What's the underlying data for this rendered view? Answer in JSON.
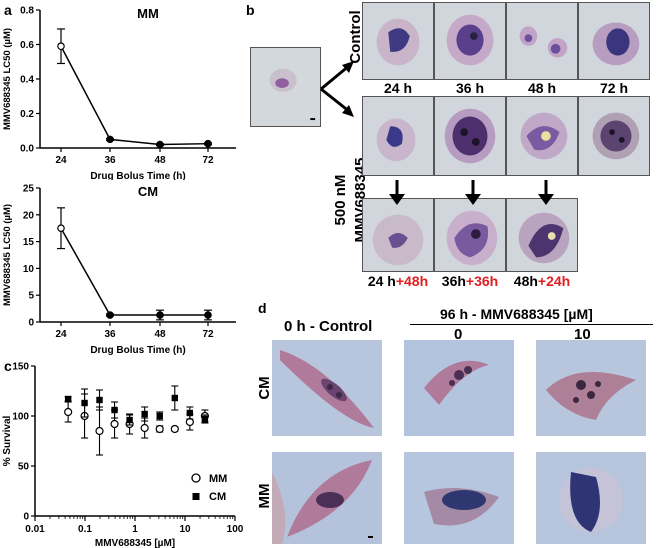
{
  "panel_a_label": "a",
  "panel_b_label": "b",
  "panel_c_label": "c",
  "panel_d_label": "d",
  "chart_data": [
    {
      "id": "mm",
      "type": "line",
      "title": "MM",
      "xlabel": "Drug Bolus Time (h)",
      "ylabel": "MMV688345 LC50 (µM)",
      "x": [
        24,
        36,
        48,
        72
      ],
      "y": [
        0.59,
        0.05,
        0.02,
        0.025
      ],
      "err": [
        0.1,
        0.005,
        0.005,
        0.005
      ],
      "xticks": [
        "24",
        "36",
        "48",
        "72"
      ],
      "ylim": [
        0,
        0.8
      ],
      "yticks": [
        "0.0",
        "0.2",
        "0.4",
        "0.6",
        "0.8"
      ]
    },
    {
      "id": "cm",
      "type": "line",
      "title": "CM",
      "xlabel": "Drug Bolus Time (h)",
      "ylabel": "MMV688345 LC50 (µM)",
      "x": [
        24,
        36,
        48,
        72
      ],
      "y": [
        17.5,
        1.3,
        1.3,
        1.3
      ],
      "err": [
        3.8,
        0.2,
        0.9,
        0.9
      ],
      "xticks": [
        "24",
        "36",
        "48",
        "72"
      ],
      "ylim": [
        0,
        25
      ],
      "yticks": [
        "0",
        "5",
        "10",
        "15",
        "20",
        "25"
      ]
    },
    {
      "id": "survival",
      "type": "scatter",
      "xlabel": "MMV688345 [µM]",
      "ylabel": "% Survival",
      "xscale": "log",
      "xlim": [
        0.01,
        100
      ],
      "xticks": [
        "0.01",
        "0.1",
        "1",
        "10",
        "100"
      ],
      "ylim": [
        0,
        150
      ],
      "yticks": [
        "0",
        "50",
        "100",
        "150"
      ],
      "legend_position": "bottom-right",
      "series": [
        {
          "name": "MM",
          "marker": "open-circle",
          "x": [
            0.046,
            0.098,
            0.195,
            0.39,
            0.78,
            1.56,
            3.12,
            6.25,
            12.5,
            25
          ],
          "y": [
            104,
            100,
            85,
            92,
            92,
            88,
            87,
            87,
            94,
            100
          ],
          "err": [
            10,
            22,
            24,
            14,
            10,
            10,
            3,
            2,
            8,
            6
          ]
        },
        {
          "name": "CM",
          "marker": "filled-square",
          "x": [
            0.046,
            0.098,
            0.195,
            0.39,
            0.78,
            1.56,
            3.12,
            6.25,
            12.5,
            25
          ],
          "y": [
            117,
            113,
            116,
            106,
            96,
            102,
            100,
            118,
            103,
            97
          ],
          "err": [
            2,
            14,
            10,
            8,
            5,
            7,
            4,
            12,
            6,
            4
          ]
        }
      ]
    }
  ],
  "panel_b": {
    "control_label": "Control",
    "treatment_label_line1": "500 nM",
    "treatment_label_line2": "MMV688345",
    "row1_times": [
      "24 h",
      "36 h",
      "48 h",
      "72 h"
    ],
    "row3_labels": [
      {
        "base": "24 h",
        "red": "+48h"
      },
      {
        "base": "36h",
        "red": "+36h"
      },
      {
        "base": "48h",
        "red": "+24h"
      }
    ]
  },
  "panel_d": {
    "left_header": "0 h - Control",
    "right_header": "96 h - MMV688345 [µM]",
    "conc_labels": [
      "0",
      "10"
    ],
    "row_labels": [
      "CM",
      "MM"
    ]
  },
  "colors": {
    "highlight_red": "#e02020"
  }
}
